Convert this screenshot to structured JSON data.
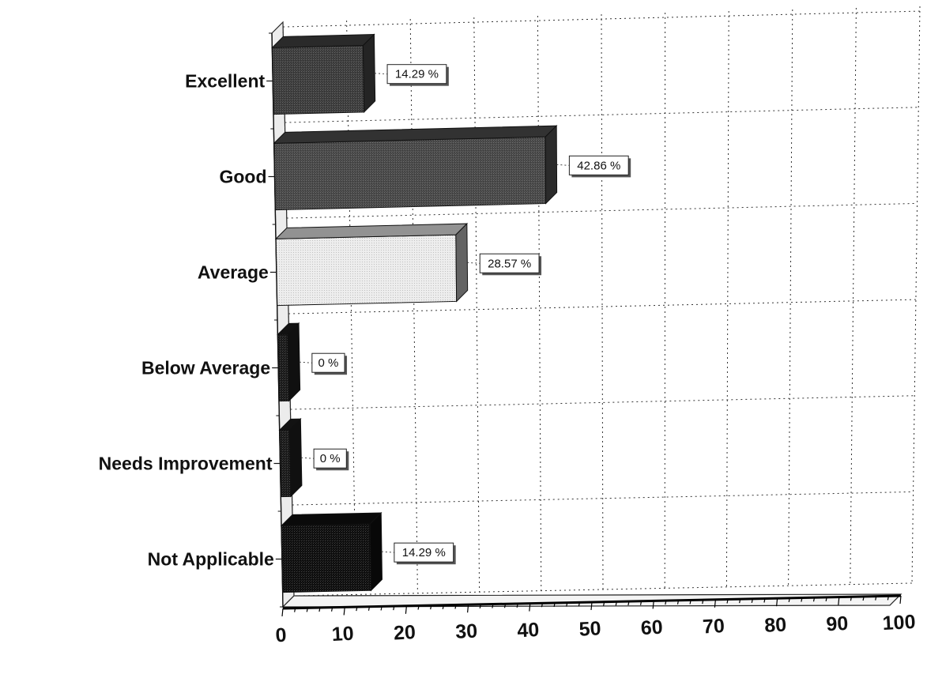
{
  "chart_data": {
    "type": "bar",
    "orientation": "horizontal",
    "three_d": true,
    "categories": [
      "Excellent",
      "Good",
      "Average",
      "Below Average",
      "Needs Improvement",
      "Not Applicable"
    ],
    "values": [
      14.29,
      42.86,
      28.57,
      0,
      0,
      14.29
    ],
    "data_labels": [
      "14.29 %",
      "42.86 %",
      "28.57 %",
      "0 %",
      "0 %",
      "14.29 %"
    ],
    "bar_colors": [
      "#3c3c3c",
      "#484848",
      "#ececec",
      "#1a1a1a",
      "#1a1a1a",
      "#0e0e0e"
    ],
    "xlim": [
      0,
      100
    ],
    "x_ticks": [
      "0",
      "10",
      "20",
      "30",
      "40",
      "50",
      "60",
      "70",
      "80",
      "90",
      "100"
    ],
    "grid": true,
    "legend": false,
    "title": "",
    "xlabel": "",
    "ylabel": ""
  }
}
